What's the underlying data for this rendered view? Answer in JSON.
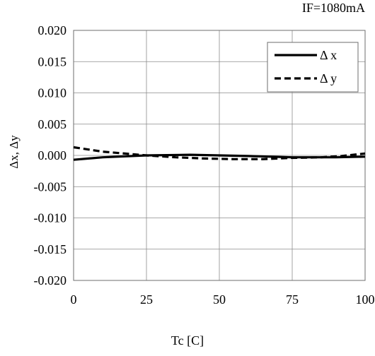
{
  "chart_data": {
    "type": "line",
    "annotation": "IF=1080mA",
    "xlabel": "Tc [C]",
    "ylabel": "Δx, Δy",
    "xlim": [
      0,
      100
    ],
    "ylim": [
      -0.02,
      0.02
    ],
    "x_ticks": [
      "0",
      "25",
      "50",
      "75",
      "100"
    ],
    "y_ticks": [
      "0.020",
      "0.015",
      "0.010",
      "0.005",
      "0.000",
      "-0.005",
      "-0.010",
      "-0.015",
      "-0.020"
    ],
    "x_tick_values": [
      0,
      25,
      50,
      75,
      100
    ],
    "y_tick_values": [
      0.02,
      0.015,
      0.01,
      0.005,
      0.0,
      -0.005,
      -0.01,
      -0.015,
      -0.02
    ],
    "grid": true,
    "legend_position": "top-right",
    "series": [
      {
        "name": "Δ x",
        "style": "solid",
        "x": [
          0,
          10,
          25,
          40,
          50,
          60,
          75,
          90,
          100
        ],
        "y": [
          -0.0007,
          -0.0003,
          0.0,
          0.0001,
          0.0,
          -0.0001,
          -0.0003,
          -0.0003,
          -0.0002
        ]
      },
      {
        "name": "Δ y",
        "style": "dashed",
        "x": [
          0,
          10,
          25,
          35,
          45,
          55,
          65,
          75,
          85,
          92,
          100
        ],
        "y": [
          0.0013,
          0.0006,
          0.0,
          -0.0003,
          -0.0005,
          -0.0006,
          -0.0006,
          -0.0004,
          -0.0003,
          -0.0001,
          0.0003
        ]
      }
    ]
  }
}
